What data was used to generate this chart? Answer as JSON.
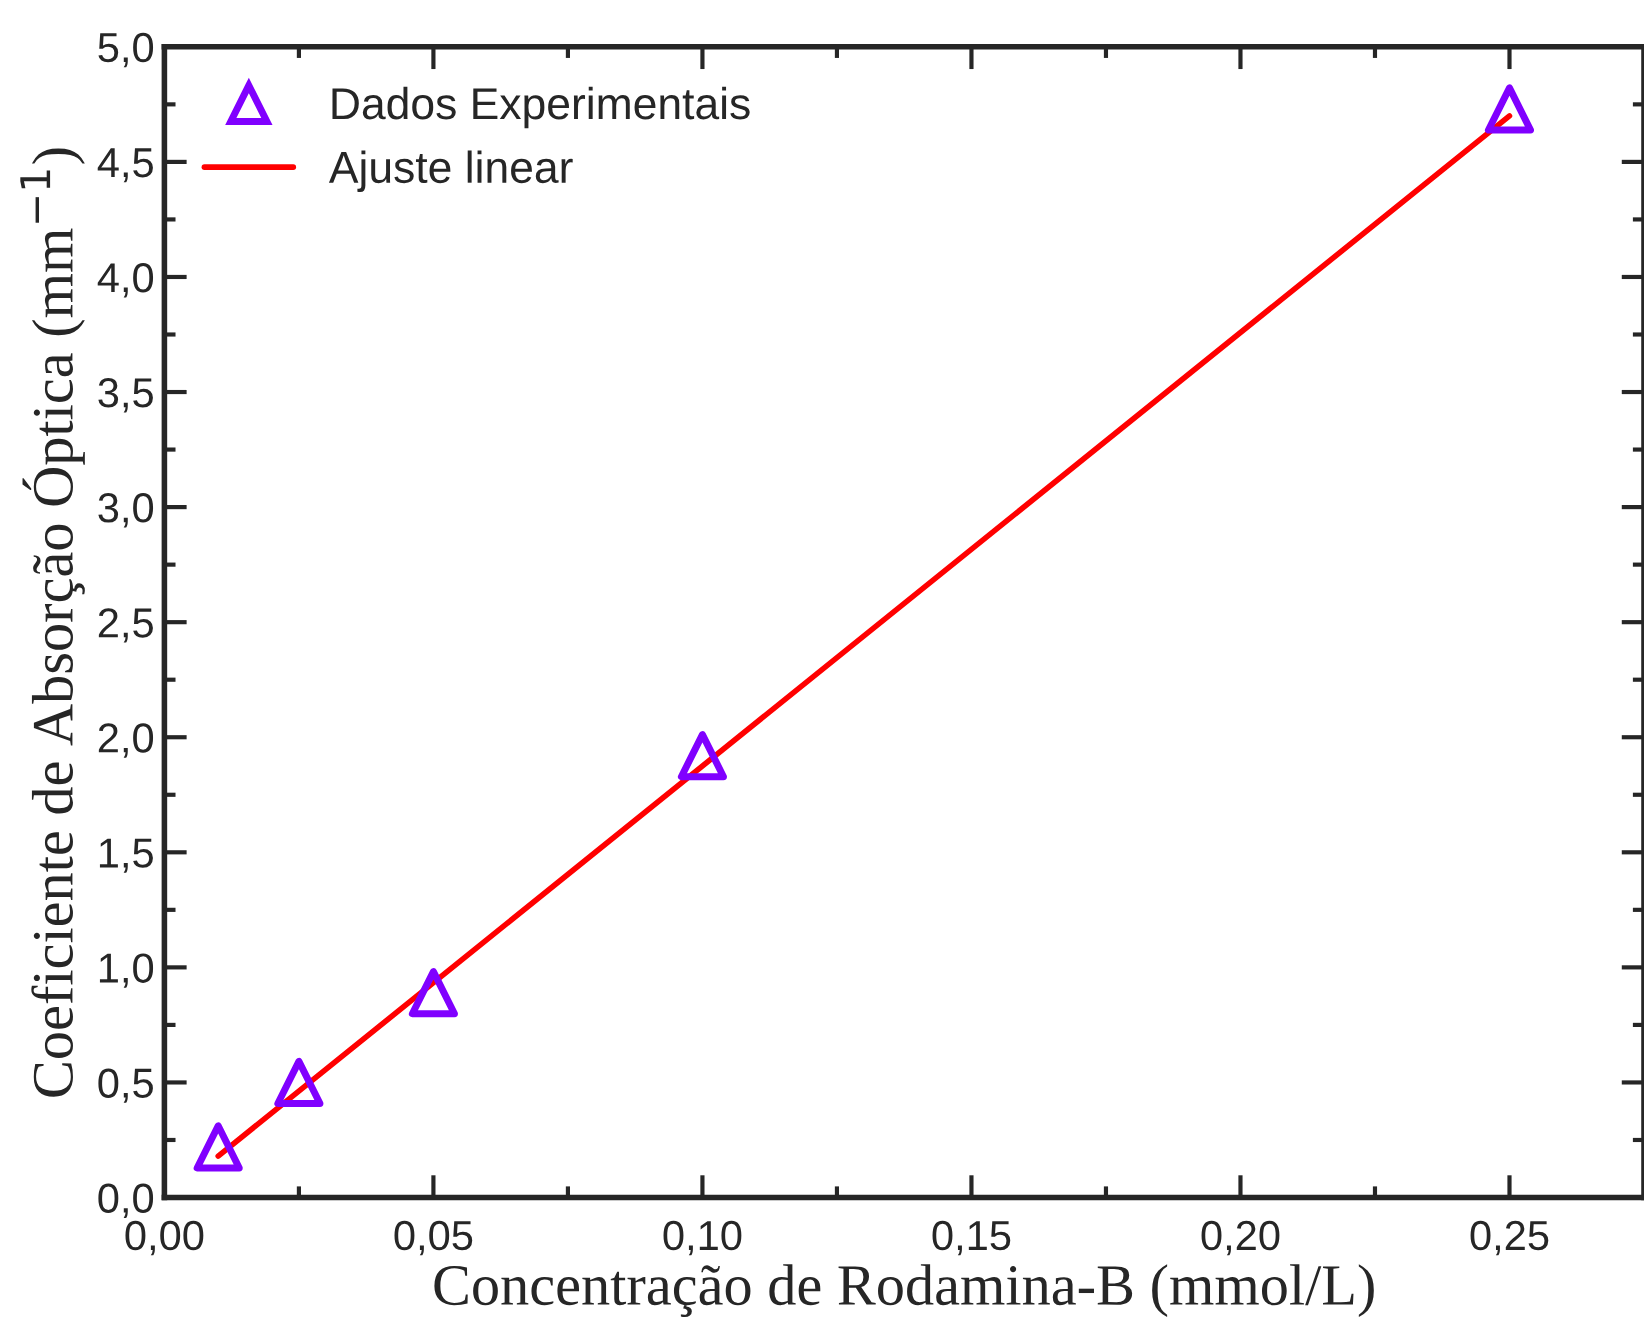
{
  "chart_data": {
    "type": "scatter",
    "xlabel": "Concentração de Rodamina-B (mmol/L)",
    "ylabel": "Coeficiente de Absorção Óptica (mm$^{−1}$)",
    "xlim": [
      0,
      0.275
    ],
    "ylim": [
      0,
      5.0
    ],
    "xticks": [
      {
        "value": 0,
        "label": "0,00"
      },
      {
        "value": 0.05,
        "label": "0,05"
      },
      {
        "value": 0.1,
        "label": "0,10"
      },
      {
        "value": 0.15,
        "label": "0,15"
      },
      {
        "value": 0.2,
        "label": "0,20"
      },
      {
        "value": 0.25,
        "label": "0,25"
      },
      {
        "value": 0.025,
        "label": null
      },
      {
        "value": 0.075,
        "label": null
      },
      {
        "value": 0.125,
        "label": null
      },
      {
        "value": 0.175,
        "label": null
      },
      {
        "value": 0.225,
        "label": null
      }
    ],
    "yticks": [
      {
        "value": 0,
        "label": "0,0"
      },
      {
        "value": 0.5,
        "label": "0,5"
      },
      {
        "value": 1.0,
        "label": "1,0"
      },
      {
        "value": 1.5,
        "label": "1,5"
      },
      {
        "value": 2.0,
        "label": "2,0"
      },
      {
        "value": 2.5,
        "label": "2,5"
      },
      {
        "value": 3.0,
        "label": "3,0"
      },
      {
        "value": 3.5,
        "label": "3,5"
      },
      {
        "value": 4.0,
        "label": "4,0"
      },
      {
        "value": 4.5,
        "label": "4,5"
      },
      {
        "value": 5.0,
        "label": "5,0"
      },
      {
        "value": 0.25,
        "label": null
      },
      {
        "value": 0.75,
        "label": null
      },
      {
        "value": 1.25,
        "label": null
      },
      {
        "value": 1.75,
        "label": null
      },
      {
        "value": 2.25,
        "label": null
      },
      {
        "value": 2.75,
        "label": null
      },
      {
        "value": 3.25,
        "label": null
      },
      {
        "value": 3.75,
        "label": null
      },
      {
        "value": 4.25,
        "label": null
      },
      {
        "value": 4.75,
        "label": null
      }
    ],
    "grid": false,
    "legend": "top left",
    "series": [
      {
        "name": "Dados Experimentais",
        "color": "#8000ff",
        "marker": "triangle",
        "x": [
          0.01,
          0.025,
          0.05,
          0.1,
          0.25
        ],
        "values": [
          0.22,
          0.5,
          0.89,
          1.92,
          4.73
        ]
      },
      {
        "name": "Ajuste linear",
        "type": "line",
        "color": "#ff0000",
        "marker": "none",
        "line_style": "solid",
        "x": [
          0.01,
          0.25
        ],
        "values": [
          0.18,
          4.7
        ]
      }
    ]
  }
}
